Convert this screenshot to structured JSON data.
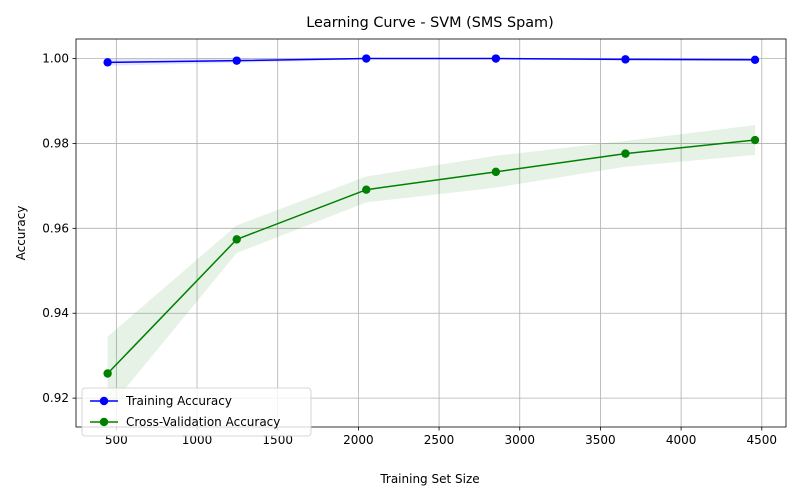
{
  "chart_data": {
    "type": "line",
    "title": "Learning Curve - SVM (SMS Spam)",
    "xlabel": "Training Set Size",
    "ylabel": "Accuracy",
    "xlim": [
      250,
      4650
    ],
    "ylim": [
      0.9132,
      1.0046
    ],
    "xticks": [
      500,
      1000,
      1500,
      2000,
      2500,
      3000,
      3500,
      4000,
      4500
    ],
    "yticks": [
      0.92,
      0.94,
      0.96,
      0.98,
      1.0
    ],
    "xtick_labels": [
      "500",
      "1000",
      "1500",
      "2000",
      "2500",
      "3000",
      "3500",
      "4000",
      "4500"
    ],
    "ytick_labels": [
      "0.92",
      "0.94",
      "0.96",
      "0.98",
      "1.00"
    ],
    "grid": true,
    "legend_position": "lower-left",
    "x": [
      446,
      1246,
      2049,
      2852,
      3655,
      4458
    ],
    "series": [
      {
        "name": "Training Accuracy",
        "color": "#0000ff",
        "marker": "circle",
        "values": [
          0.9991,
          0.9995,
          1.0,
          1.0,
          0.9998,
          0.9997
        ],
        "band_low": [
          0.9983,
          0.999,
          0.9998,
          0.9998,
          0.9995,
          0.9994
        ],
        "band_high": [
          0.9999,
          1.0,
          1.0,
          1.0,
          1.0,
          0.9999
        ]
      },
      {
        "name": "Cross-Validation Accuracy",
        "color": "#008000",
        "marker": "circle",
        "values": [
          0.9258,
          0.9574,
          0.9691,
          0.9733,
          0.9776,
          0.9808
        ],
        "band_low": [
          0.9172,
          0.9542,
          0.9661,
          0.9696,
          0.9745,
          0.9773
        ],
        "band_high": [
          0.9345,
          0.9607,
          0.9722,
          0.9771,
          0.9806,
          0.9843
        ]
      }
    ]
  }
}
